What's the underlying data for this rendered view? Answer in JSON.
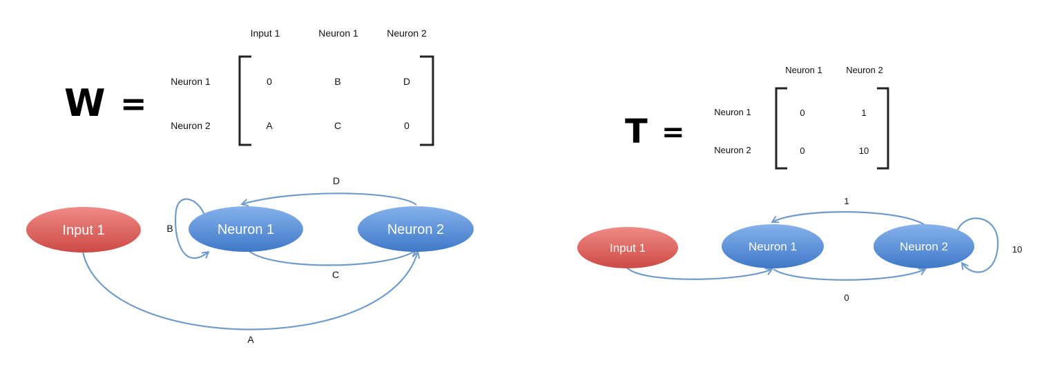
{
  "left": {
    "symbol": "W",
    "equals": "=",
    "col_headers": [
      "Input 1",
      "Neuron 1",
      "Neuron 2"
    ],
    "row_headers": [
      "Neuron 1",
      "Neuron 2"
    ],
    "rows": [
      [
        "0",
        "B",
        "D"
      ],
      [
        "A",
        "C",
        "0"
      ]
    ],
    "nodes": {
      "input1": "Input 1",
      "neuron1": "Neuron 1",
      "neuron2": "Neuron 2"
    },
    "edge_labels": {
      "a": "A",
      "b": "B",
      "c": "C",
      "d": "D"
    }
  },
  "right": {
    "symbol": "T",
    "equals": "=",
    "col_headers": [
      "Neuron 1",
      "Neuron 2"
    ],
    "row_headers": [
      "Neuron 1",
      "Neuron 2"
    ],
    "rows": [
      [
        "0",
        "1"
      ],
      [
        "0",
        "10"
      ]
    ],
    "nodes": {
      "input1": "Input 1",
      "neuron1": "Neuron 1",
      "neuron2": "Neuron 2"
    },
    "edge_labels": {
      "n2_to_n1": "1",
      "n2_self": "10",
      "n1_to_n2": "0"
    }
  },
  "colors": {
    "input_node": "#d9534f",
    "neuron_node": "#4f86d0",
    "edge": "#6f9bcc"
  }
}
